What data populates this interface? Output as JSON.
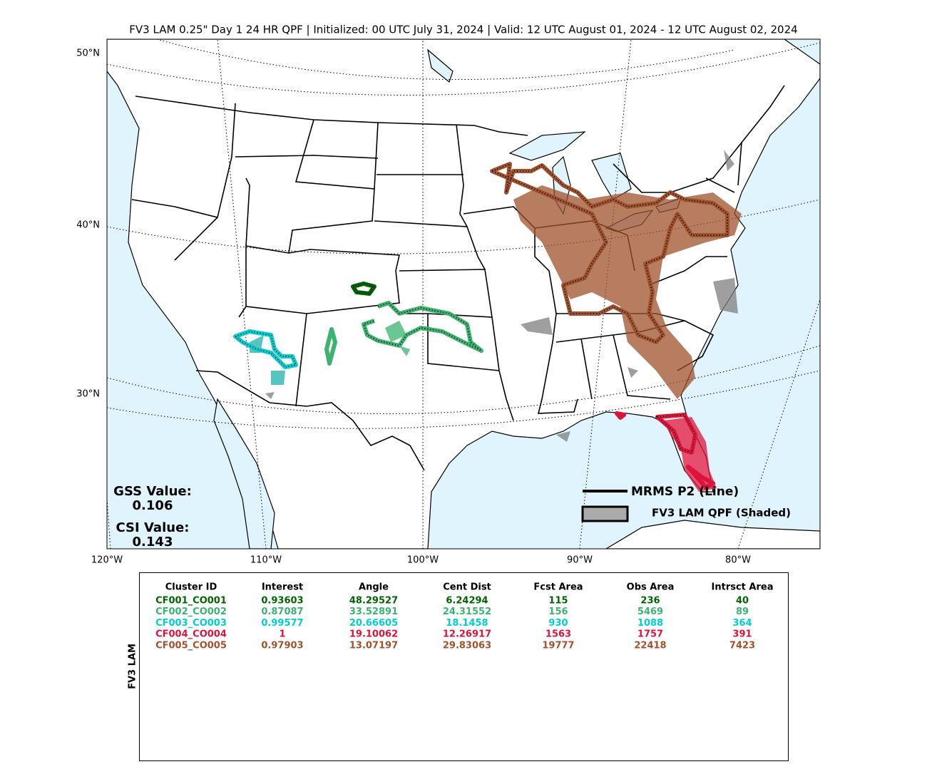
{
  "title": "FV3 LAM 0.25\" Day 1 24 HR QPF | Initialized: 00 UTC July 31, 2024 | Valid: 12 UTC August 01, 2024 - 12 UTC August 02, 2024",
  "map": {
    "lat_labels": [
      "50°N",
      "40°N",
      "30°N"
    ],
    "lon_labels": [
      "120°W",
      "110°W",
      "100°W",
      "90°W",
      "80°W"
    ],
    "scores": [
      {
        "label": "GSS Value:",
        "value": "0.106"
      },
      {
        "label": "CSI Value:",
        "value": "0.143"
      }
    ],
    "legend": {
      "line": "MRMS P2 (Line)",
      "shaded": "FV3 LAM QPF (Shaded)"
    }
  },
  "table": {
    "side_label": "FV3 LAM",
    "columns": [
      "Cluster ID",
      "Interest",
      "Angle",
      "Cent Dist",
      "Fcst Area",
      "Obs Area",
      "Intrsct Area"
    ],
    "row_colors": [
      "#006400",
      "#3cb371",
      "#00ced1",
      "#dc143c",
      "#a0522d"
    ],
    "rows": [
      [
        "CF001_CO001",
        "0.93603",
        "48.29527",
        "6.24294",
        "115",
        "236",
        "40"
      ],
      [
        "CF002_CO002",
        "0.87087",
        "33.52891",
        "24.31552",
        "156",
        "5469",
        "89"
      ],
      [
        "CF003_CO003",
        "0.99577",
        "20.66605",
        "18.1458",
        "930",
        "1088",
        "364"
      ],
      [
        "CF004_CO004",
        "1",
        "19.10062",
        "12.26917",
        "1563",
        "1757",
        "391"
      ],
      [
        "CF005_CO005",
        "0.97903",
        "13.07197",
        "29.83063",
        "19777",
        "22418",
        "7423"
      ]
    ]
  }
}
